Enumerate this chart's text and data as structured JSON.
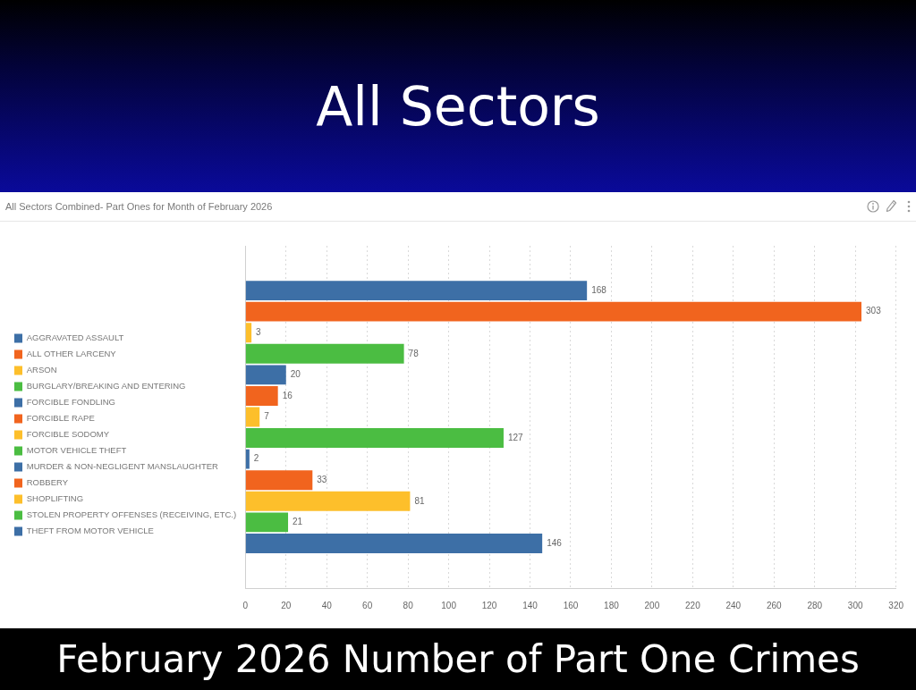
{
  "chart_data": {
    "type": "bar",
    "orientation": "horizontal",
    "title": "All Sectors",
    "subtitle": "All Sectors Combined- Part Ones for Month of February 2026",
    "annotations": [
      "February 2026 Number of Part One Crimes"
    ],
    "categories": [
      null
    ],
    "series": [
      {
        "name": "AGGRAVATED ASSAULT",
        "color": "#3d6fa6",
        "values": [
          168
        ]
      },
      {
        "name": "ALL OTHER LARCENY",
        "color": "#f1641e",
        "values": [
          303
        ]
      },
      {
        "name": "ARSON",
        "color": "#fdbf2b",
        "values": [
          3
        ]
      },
      {
        "name": "BURGLARY/BREAKING AND ENTERING",
        "color": "#4bbd42",
        "values": [
          78
        ]
      },
      {
        "name": "FORCIBLE FONDLING",
        "color": "#3d6fa6",
        "values": [
          20
        ]
      },
      {
        "name": "FORCIBLE RAPE",
        "color": "#f1641e",
        "values": [
          16
        ]
      },
      {
        "name": "FORCIBLE SODOMY",
        "color": "#fdbf2b",
        "values": [
          7
        ]
      },
      {
        "name": "MOTOR VEHICLE THEFT",
        "color": "#4bbd42",
        "values": [
          127
        ]
      },
      {
        "name": "MURDER & NON-NEGLIGENT MANSLAUGHTER",
        "color": "#3d6fa6",
        "values": [
          2
        ]
      },
      {
        "name": "ROBBERY",
        "color": "#f1641e",
        "values": [
          33
        ]
      },
      {
        "name": "SHOPLIFTING",
        "color": "#fdbf2b",
        "values": [
          81
        ]
      },
      {
        "name": "STOLEN PROPERTY OFFENSES (RECEIVING, ETC.)",
        "color": "#4bbd42",
        "values": [
          21
        ]
      },
      {
        "name": "THEFT FROM MOTOR VEHICLE",
        "color": "#3d6fa6",
        "values": [
          146
        ]
      }
    ],
    "xlim": [
      0,
      320
    ],
    "xticks": [
      0,
      20,
      40,
      60,
      80,
      100,
      120,
      140,
      160,
      180,
      200,
      220,
      240,
      260,
      280,
      300,
      320
    ],
    "grid": "x",
    "legend": "left",
    "data_labels": true,
    "tick_labels": "x"
  }
}
